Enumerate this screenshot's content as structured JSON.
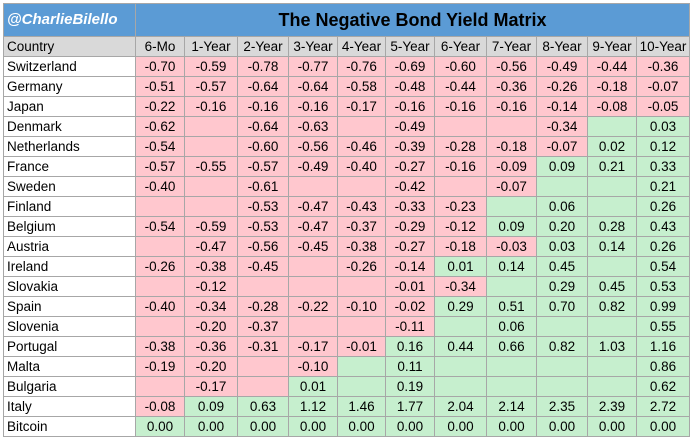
{
  "handle": "@CharlieBilello",
  "colors": {
    "header_blue": "#5b9bd5",
    "column_header_gray": "#d9d9d9",
    "negative_fill": "#ffc7ce",
    "positive_fill": "#c6efce"
  },
  "chart_data": {
    "type": "table",
    "title": "The Negative Bond Yield Matrix",
    "row_header_label": "Country",
    "columns": [
      "6-Mo",
      "1-Year",
      "2-Year",
      "3-Year",
      "4-Year",
      "5-Year",
      "6-Year",
      "7-Year",
      "8-Year",
      "9-Year",
      "10-Year"
    ],
    "rows": [
      {
        "country": "Switzerland",
        "values": [
          "-0.70",
          "-0.59",
          "-0.78",
          "-0.77",
          "-0.76",
          "-0.69",
          "-0.60",
          "-0.56",
          "-0.49",
          "-0.44",
          "-0.36"
        ],
        "signs": [
          "n",
          "n",
          "n",
          "n",
          "n",
          "n",
          "n",
          "n",
          "n",
          "n",
          "n"
        ]
      },
      {
        "country": "Germany",
        "values": [
          "-0.51",
          "-0.57",
          "-0.64",
          "-0.64",
          "-0.58",
          "-0.48",
          "-0.44",
          "-0.36",
          "-0.26",
          "-0.18",
          "-0.07"
        ],
        "signs": [
          "n",
          "n",
          "n",
          "n",
          "n",
          "n",
          "n",
          "n",
          "n",
          "n",
          "n"
        ]
      },
      {
        "country": "Japan",
        "values": [
          "-0.22",
          "-0.16",
          "-0.16",
          "-0.16",
          "-0.17",
          "-0.16",
          "-0.16",
          "-0.16",
          "-0.14",
          "-0.08",
          "-0.05"
        ],
        "signs": [
          "n",
          "n",
          "n",
          "n",
          "n",
          "n",
          "n",
          "n",
          "n",
          "n",
          "n"
        ]
      },
      {
        "country": "Denmark",
        "values": [
          "-0.62",
          "",
          "-0.64",
          "-0.63",
          "",
          "-0.49",
          "",
          "",
          "-0.34",
          "",
          "0.03"
        ],
        "signs": [
          "n",
          "n",
          "n",
          "n",
          "n",
          "n",
          "n",
          "n",
          "n",
          "p",
          "p"
        ]
      },
      {
        "country": "Netherlands",
        "values": [
          "-0.54",
          "",
          "-0.60",
          "-0.56",
          "-0.46",
          "-0.39",
          "-0.28",
          "-0.18",
          "-0.07",
          "0.02",
          "0.12"
        ],
        "signs": [
          "n",
          "n",
          "n",
          "n",
          "n",
          "n",
          "n",
          "n",
          "n",
          "p",
          "p"
        ]
      },
      {
        "country": "France",
        "values": [
          "-0.57",
          "-0.55",
          "-0.57",
          "-0.49",
          "-0.40",
          "-0.27",
          "-0.16",
          "-0.09",
          "0.09",
          "0.21",
          "0.33"
        ],
        "signs": [
          "n",
          "n",
          "n",
          "n",
          "n",
          "n",
          "n",
          "n",
          "p",
          "p",
          "p"
        ]
      },
      {
        "country": "Sweden",
        "values": [
          "-0.40",
          "",
          "-0.61",
          "",
          "",
          "-0.42",
          "",
          "-0.07",
          "",
          "",
          "0.21"
        ],
        "signs": [
          "n",
          "n",
          "n",
          "n",
          "n",
          "n",
          "n",
          "n",
          "p",
          "p",
          "p"
        ]
      },
      {
        "country": "Finland",
        "values": [
          "",
          "",
          "-0.53",
          "-0.47",
          "-0.43",
          "-0.33",
          "-0.23",
          "",
          "0.06",
          "",
          "0.26"
        ],
        "signs": [
          "n",
          "n",
          "n",
          "n",
          "n",
          "n",
          "n",
          "p",
          "p",
          "p",
          "p"
        ]
      },
      {
        "country": "Belgium",
        "values": [
          "-0.54",
          "-0.59",
          "-0.53",
          "-0.47",
          "-0.37",
          "-0.29",
          "-0.12",
          "0.09",
          "0.20",
          "0.28",
          "0.43"
        ],
        "signs": [
          "n",
          "n",
          "n",
          "n",
          "n",
          "n",
          "n",
          "p",
          "p",
          "p",
          "p"
        ]
      },
      {
        "country": "Austria",
        "values": [
          "",
          "-0.47",
          "-0.56",
          "-0.45",
          "-0.38",
          "-0.27",
          "-0.18",
          "-0.03",
          "0.03",
          "0.14",
          "0.26"
        ],
        "signs": [
          "n",
          "n",
          "n",
          "n",
          "n",
          "n",
          "n",
          "n",
          "p",
          "p",
          "p"
        ]
      },
      {
        "country": "Ireland",
        "values": [
          "-0.26",
          "-0.38",
          "-0.45",
          "",
          "-0.26",
          "-0.14",
          "0.01",
          "0.14",
          "0.45",
          "",
          "0.54"
        ],
        "signs": [
          "n",
          "n",
          "n",
          "n",
          "n",
          "n",
          "p",
          "p",
          "p",
          "p",
          "p"
        ]
      },
      {
        "country": "Slovakia",
        "values": [
          "",
          "-0.12",
          "",
          "",
          "",
          "-0.01",
          "-0.34",
          "",
          "0.29",
          "0.45",
          "0.53"
        ],
        "signs": [
          "n",
          "n",
          "n",
          "n",
          "n",
          "n",
          "n",
          "p",
          "p",
          "p",
          "p"
        ]
      },
      {
        "country": "Spain",
        "values": [
          "-0.40",
          "-0.34",
          "-0.28",
          "-0.22",
          "-0.10",
          "-0.02",
          "0.29",
          "0.51",
          "0.70",
          "0.82",
          "0.99"
        ],
        "signs": [
          "n",
          "n",
          "n",
          "n",
          "n",
          "n",
          "p",
          "p",
          "p",
          "p",
          "p"
        ]
      },
      {
        "country": "Slovenia",
        "values": [
          "",
          "-0.20",
          "-0.37",
          "",
          "",
          "-0.11",
          "",
          "0.06",
          "",
          "",
          "0.55"
        ],
        "signs": [
          "n",
          "n",
          "n",
          "n",
          "n",
          "n",
          "p",
          "p",
          "p",
          "p",
          "p"
        ]
      },
      {
        "country": "Portugal",
        "values": [
          "-0.38",
          "-0.36",
          "-0.31",
          "-0.17",
          "-0.01",
          "0.16",
          "0.44",
          "0.66",
          "0.82",
          "1.03",
          "1.16"
        ],
        "signs": [
          "n",
          "n",
          "n",
          "n",
          "n",
          "p",
          "p",
          "p",
          "p",
          "p",
          "p"
        ]
      },
      {
        "country": "Malta",
        "values": [
          "-0.19",
          "-0.20",
          "",
          "-0.10",
          "",
          "0.11",
          "",
          "",
          "",
          "",
          "0.86"
        ],
        "signs": [
          "n",
          "n",
          "n",
          "n",
          "p",
          "p",
          "p",
          "p",
          "p",
          "p",
          "p"
        ]
      },
      {
        "country": "Bulgaria",
        "values": [
          "",
          "-0.17",
          "",
          "0.01",
          "",
          "0.19",
          "",
          "",
          "",
          "",
          "0.62"
        ],
        "signs": [
          "n",
          "n",
          "n",
          "p",
          "p",
          "p",
          "p",
          "p",
          "p",
          "p",
          "p"
        ]
      },
      {
        "country": "Italy",
        "values": [
          "-0.08",
          "0.09",
          "0.63",
          "1.12",
          "1.46",
          "1.77",
          "2.04",
          "2.14",
          "2.35",
          "2.39",
          "2.72"
        ],
        "signs": [
          "n",
          "p",
          "p",
          "p",
          "p",
          "p",
          "p",
          "p",
          "p",
          "p",
          "p"
        ]
      },
      {
        "country": "Bitcoin",
        "values": [
          "0.00",
          "0.00",
          "0.00",
          "0.00",
          "0.00",
          "0.00",
          "0.00",
          "0.00",
          "0.00",
          "0.00",
          "0.00"
        ],
        "signs": [
          "p",
          "p",
          "p",
          "p",
          "p",
          "p",
          "p",
          "p",
          "p",
          "p",
          "p"
        ]
      }
    ]
  }
}
